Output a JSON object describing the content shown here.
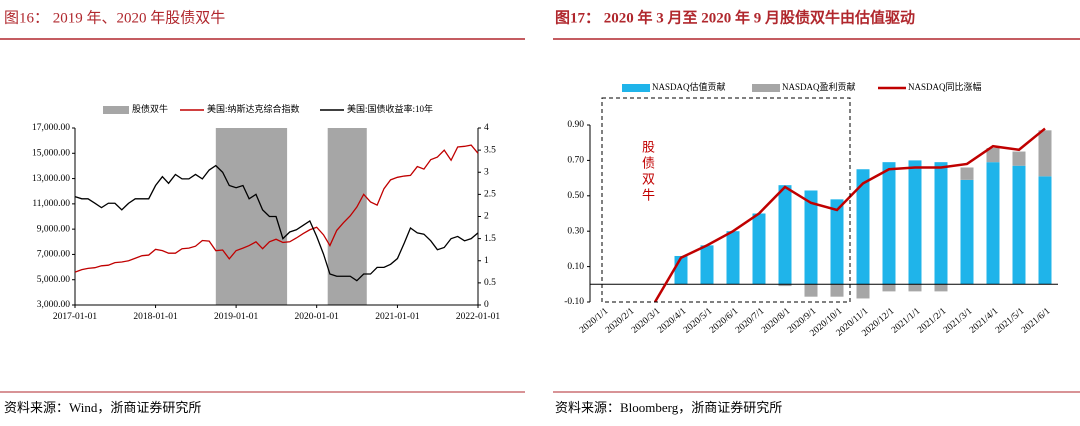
{
  "chart_data": [
    {
      "type": "line",
      "title": "图16： 2019 年、2020 年股债双牛",
      "source": "资料来源：Wind，浙商证券研究所",
      "shaded": {
        "name": "股债双牛",
        "color": "#a6a6a6",
        "ranges": [
          [
            "2018-10-01",
            "2019-08-20"
          ],
          [
            "2020-02-20",
            "2020-08-15"
          ]
        ]
      },
      "x": [
        "2017-01-01",
        "2017-02-01",
        "2017-03-01",
        "2017-04-01",
        "2017-05-01",
        "2017-06-01",
        "2017-07-01",
        "2017-08-01",
        "2017-09-01",
        "2017-10-01",
        "2017-11-01",
        "2017-12-01",
        "2018-01-01",
        "2018-02-01",
        "2018-03-01",
        "2018-04-01",
        "2018-05-01",
        "2018-06-01",
        "2018-07-01",
        "2018-08-01",
        "2018-09-01",
        "2018-10-01",
        "2018-11-01",
        "2018-12-01",
        "2019-01-01",
        "2019-02-01",
        "2019-03-01",
        "2019-04-01",
        "2019-05-01",
        "2019-06-01",
        "2019-07-01",
        "2019-08-01",
        "2019-09-01",
        "2019-10-01",
        "2019-11-01",
        "2019-12-01",
        "2020-01-01",
        "2020-02-01",
        "2020-03-01",
        "2020-04-01",
        "2020-05-01",
        "2020-06-01",
        "2020-07-01",
        "2020-08-01",
        "2020-09-01",
        "2020-10-01",
        "2020-11-01",
        "2020-12-01",
        "2021-01-01",
        "2021-02-01",
        "2021-03-01",
        "2021-04-01",
        "2021-05-01",
        "2021-06-01",
        "2021-07-01",
        "2021-08-01",
        "2021-09-01",
        "2021-10-01",
        "2021-11-01",
        "2021-12-01",
        "2022-01-01"
      ],
      "series": [
        {
          "name": "美国:纳斯达克综合指数",
          "color": "#c00000",
          "values": [
            5600,
            5800,
            5900,
            5950,
            6100,
            6150,
            6350,
            6400,
            6500,
            6700,
            6900,
            6950,
            7400,
            7300,
            7100,
            7100,
            7450,
            7500,
            7650,
            8100,
            8050,
            7300,
            7350,
            6650,
            7300,
            7500,
            7700,
            8000,
            7450,
            8000,
            8200,
            7950,
            8000,
            8300,
            8650,
            8950,
            9150,
            8550,
            7700,
            8900,
            9500,
            10050,
            10750,
            11750,
            11150,
            10900,
            12200,
            12900,
            13100,
            13200,
            13250,
            13950,
            13750,
            14500,
            14700,
            15250,
            14450,
            15500,
            15550,
            15650,
            15000
          ]
        },
        {
          "name": "美国:国债收益率:10年",
          "color": "#000000",
          "axis": "y2",
          "values": [
            2.45,
            2.4,
            2.4,
            2.3,
            2.2,
            2.3,
            2.3,
            2.15,
            2.3,
            2.4,
            2.4,
            2.4,
            2.7,
            2.9,
            2.75,
            2.95,
            2.85,
            2.85,
            2.95,
            2.85,
            3.05,
            3.15,
            3.0,
            2.7,
            2.65,
            2.7,
            2.4,
            2.5,
            2.15,
            2.0,
            2.0,
            1.5,
            1.65,
            1.7,
            1.8,
            1.9,
            1.55,
            1.15,
            0.7,
            0.65,
            0.65,
            0.65,
            0.55,
            0.7,
            0.7,
            0.85,
            0.85,
            0.92,
            1.05,
            1.4,
            1.74,
            1.63,
            1.6,
            1.45,
            1.25,
            1.3,
            1.5,
            1.55,
            1.45,
            1.5,
            1.63
          ]
        }
      ],
      "xlim": [
        "2017-01-01",
        "2022-01-01"
      ],
      "xticks": [
        "2017-01-01",
        "2018-01-01",
        "2019-01-01",
        "2020-01-01",
        "2021-01-01",
        "2022-01-01"
      ],
      "ylim": [
        3000,
        17000
      ],
      "yticks": [
        {
          "value": 3000,
          "label": "3,000.00"
        },
        {
          "value": 5000,
          "label": "5,000.00"
        },
        {
          "value": 7000,
          "label": "7,000.00"
        },
        {
          "value": 9000,
          "label": "9,000.00"
        },
        {
          "value": 11000,
          "label": "11,000.00"
        },
        {
          "value": 13000,
          "label": "13,000.00"
        },
        {
          "value": 15000,
          "label": "15,000.00"
        },
        {
          "value": 17000,
          "label": "17,000.00"
        }
      ],
      "y2lim": [
        0,
        4
      ],
      "y2ticks": [
        0,
        0.5,
        1,
        1.5,
        2,
        2.5,
        3,
        3.5,
        4
      ]
    },
    {
      "type": "bar",
      "title": "图17： 2020 年 3 月至 2020 年 9 月股债双牛由估值驱动",
      "source": "资料来源：Bloomberg，浙商证券研究所",
      "annotation": "股债双牛",
      "categories": [
        "2020/1/1",
        "2020/2/1",
        "2020/3/1",
        "2020/4/1",
        "2020/5/1",
        "2020/6/1",
        "2020/7/1",
        "2020/8/1",
        "2020/9/1",
        "2020/10/1",
        "2020/11/1",
        "2020/12/1",
        "2021/1/1",
        "2021/2/1",
        "2021/3/1",
        "2021/4/1",
        "2021/5/1",
        "2021/6/1"
      ],
      "series": [
        {
          "name": "NASDAQ估值贡献",
          "type": "bar",
          "color": "#1fb4ea",
          "values": [
            null,
            null,
            null,
            0.16,
            0.22,
            0.3,
            0.4,
            0.56,
            0.53,
            0.48,
            0.65,
            0.69,
            0.7,
            0.69,
            0.59,
            0.69,
            0.67,
            0.61
          ]
        },
        {
          "name": "NASDAQ盈利贡献",
          "type": "bar",
          "color": "#a6a6a6",
          "values": [
            null,
            null,
            null,
            0,
            0,
            0,
            0,
            -0.01,
            -0.07,
            -0.07,
            -0.08,
            -0.04,
            -0.04,
            -0.04,
            0.07,
            0.08,
            0.08,
            0.26
          ]
        },
        {
          "name": "NASDAQ同比涨幅",
          "type": "line",
          "color": "#c00000",
          "values": [
            null,
            null,
            -0.1,
            0.15,
            0.22,
            0.3,
            0.4,
            0.55,
            0.46,
            0.42,
            0.57,
            0.65,
            0.66,
            0.66,
            0.68,
            0.78,
            0.76,
            0.88
          ]
        }
      ],
      "ylim": [
        -0.1,
        0.9
      ],
      "yticks": [
        {
          "value": -0.1,
          "label": "-0.10"
        },
        {
          "value": 0.1,
          "label": "0.10"
        },
        {
          "value": 0.3,
          "label": "0.30"
        },
        {
          "value": 0.5,
          "label": "0.50"
        },
        {
          "value": 0.7,
          "label": "0.70"
        },
        {
          "value": 0.9,
          "label": "0.90"
        }
      ]
    }
  ]
}
